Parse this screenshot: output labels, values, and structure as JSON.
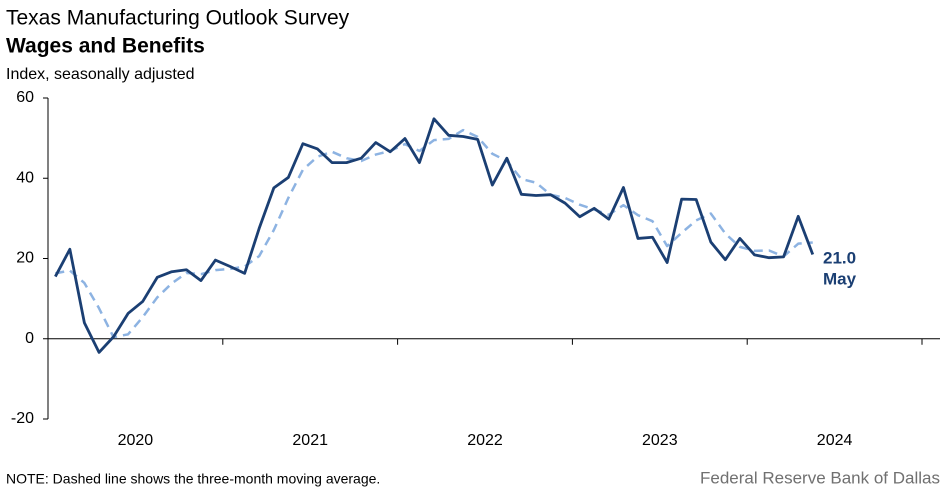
{
  "chart_data": {
    "type": "line",
    "title": "Texas Manufacturing Outlook Survey",
    "subtitle": "Wages and Benefits",
    "y_label": "Index, seasonally adjusted",
    "note": "NOTE: Dashed line shows the three-month  moving average.",
    "source": "Federal Reserve Bank of Dallas",
    "annotations": [
      "21.0",
      "May"
    ],
    "x": [
      2020.042,
      2020.125,
      2020.208,
      2020.292,
      2020.375,
      2020.458,
      2020.542,
      2020.625,
      2020.708,
      2020.792,
      2020.875,
      2020.958,
      2021.042,
      2021.125,
      2021.208,
      2021.292,
      2021.375,
      2021.458,
      2021.542,
      2021.625,
      2021.708,
      2021.792,
      2021.875,
      2021.958,
      2022.042,
      2022.125,
      2022.208,
      2022.292,
      2022.375,
      2022.458,
      2022.542,
      2022.625,
      2022.708,
      2022.792,
      2022.875,
      2022.958,
      2023.042,
      2023.125,
      2023.208,
      2023.292,
      2023.375,
      2023.458,
      2023.542,
      2023.625,
      2023.708,
      2023.792,
      2023.875,
      2023.958,
      2024.042,
      2024.125,
      2024.208,
      2024.292,
      2024.375
    ],
    "series": [
      {
        "name": "Index",
        "color": "#1b3f73",
        "dashed": false,
        "values": [
          15.5,
          22.3,
          4.0,
          -3.4,
          0.5,
          6.3,
          9.3,
          15.3,
          16.7,
          17.2,
          14.5,
          19.6,
          18.0,
          16.3,
          27.5,
          37.6,
          40.2,
          48.6,
          47.3,
          43.9,
          43.9,
          45.0,
          48.9,
          46.6,
          49.9,
          43.9,
          54.8,
          50.7,
          50.4,
          49.7,
          38.3,
          45.0,
          36.0,
          35.7,
          35.9,
          33.8,
          30.4,
          32.5,
          29.8,
          37.7,
          25.0,
          25.3,
          19.0,
          34.8,
          34.7,
          24.1,
          19.7,
          25.0,
          20.9,
          20.2,
          20.4,
          30.5,
          21.0
        ]
      },
      {
        "name": "Three-month moving average",
        "color": "#8db3e2",
        "dashed": true,
        "values": [
          16.3,
          17.0,
          13.9,
          7.6,
          0.4,
          1.1,
          5.4,
          10.3,
          13.8,
          16.4,
          16.1,
          17.1,
          17.4,
          18.0,
          20.6,
          27.1,
          35.1,
          42.1,
          45.4,
          46.6,
          45.0,
          44.3,
          45.9,
          46.8,
          48.5,
          46.8,
          49.5,
          49.8,
          52.0,
          50.3,
          46.1,
          44.3,
          39.8,
          38.9,
          35.9,
          35.1,
          33.4,
          32.2,
          30.9,
          33.3,
          30.8,
          29.3,
          23.1,
          26.4,
          29.5,
          31.2,
          26.2,
          22.9,
          21.9,
          22.0,
          20.5,
          23.7,
          24.0
        ]
      }
    ],
    "xlim": [
      2020,
      2025
    ],
    "xticks": [
      {
        "value": 2020.5,
        "label": "2020"
      },
      {
        "value": 2021.5,
        "label": "2021"
      },
      {
        "value": 2022.5,
        "label": "2022"
      },
      {
        "value": 2023.5,
        "label": "2023"
      },
      {
        "value": 2024.5,
        "label": "2024"
      }
    ],
    "ylim": [
      -20,
      60
    ],
    "yticks": [
      -20,
      0,
      20,
      40,
      60
    ],
    "grid": false
  }
}
